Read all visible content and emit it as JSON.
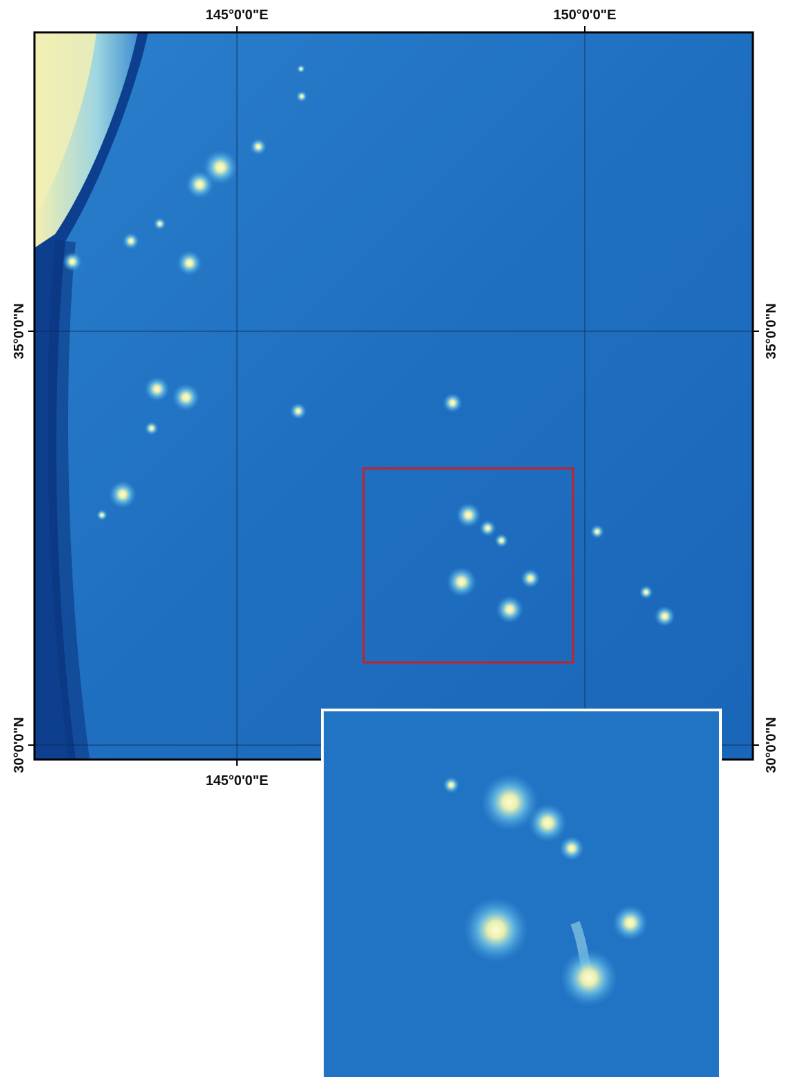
{
  "map": {
    "top_labels": [
      "145°0'0\"E",
      "150°0'0\"E"
    ],
    "bottom_labels": [
      "145°0'0\"E"
    ],
    "left_labels": [
      "35°0'0\"N",
      "30°0'0\"N"
    ],
    "right_labels": [
      "35°0'0\"N",
      "30°0'0\"N"
    ]
  }
}
